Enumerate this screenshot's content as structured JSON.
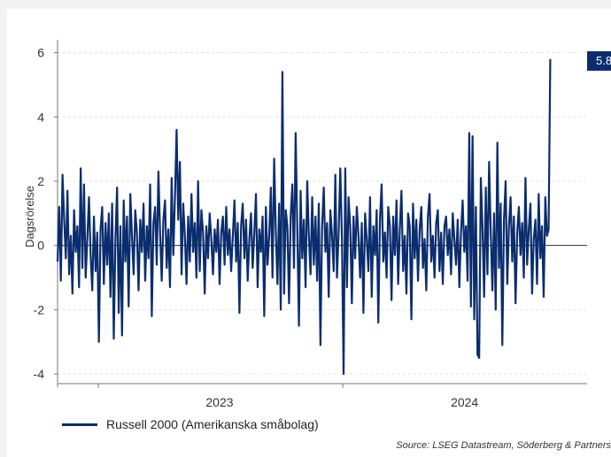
{
  "chart_data": {
    "type": "line",
    "ylabel": "Dagsrörelse",
    "ylim": [
      -4.3,
      6.4
    ],
    "yticks": [
      6,
      4,
      2,
      0,
      -2,
      -4
    ],
    "ytick_labels": [
      "6",
      "4",
      "2",
      "0",
      "-2",
      "-4"
    ],
    "xlim": [
      "2022-11-01",
      "2024-12-31"
    ],
    "xticks": [
      {
        "label": "2023",
        "date": "2023-07-01"
      },
      {
        "label": "2024",
        "date": "2024-07-01"
      }
    ],
    "x_separators": [
      "2023-01-01",
      "2024-01-01"
    ],
    "grid": "horizontal",
    "legend_position": "bottom-left",
    "series": [
      {
        "name": "Russell 2000 (Amerikanska småbolag)",
        "color": "#0b2d6e",
        "x_start": "2022-11-01",
        "x_end": "2024-11-06",
        "values": [
          -0.5,
          1.2,
          -1.1,
          2.2,
          0.8,
          -0.4,
          1.7,
          -0.9,
          0.3,
          -1.5,
          1.1,
          -0.2,
          0.6,
          -1.3,
          2.4,
          -0.7,
          1.9,
          -1.0,
          0.2,
          1.5,
          -0.3,
          -1.4,
          0.9,
          -0.8,
          0.4,
          -3.0,
          0.5,
          1.2,
          -1.2,
          0.7,
          -0.6,
          1.0,
          -1.6,
          1.3,
          -2.9,
          0.2,
          1.8,
          -2.1,
          0.6,
          -2.8,
          1.4,
          -0.5,
          0.9,
          -1.9,
          1.6,
          0.3,
          -0.9,
          1.1,
          0.4,
          -1.4,
          0.8,
          -0.2,
          1.3,
          -1.1,
          0.6,
          -0.4,
          1.9,
          -2.2,
          0.7,
          1.2,
          -0.6,
          2.3,
          0.4,
          -1.1,
          0.8,
          1.4,
          -0.7,
          0.5,
          -1.3,
          2.1,
          -0.3,
          1.5,
          3.6,
          0.8,
          2.6,
          -0.9,
          1.3,
          0.3,
          -1.2,
          0.9,
          -0.5,
          1.6,
          -0.2,
          0.7,
          -1.0,
          2.0,
          -0.8,
          1.1,
          0.4,
          -1.5,
          0.6,
          -0.4,
          1.0,
          0.2,
          -0.9,
          0.5,
          -0.2,
          0.8,
          -1.2,
          0.4,
          0.9,
          -0.6,
          1.2,
          -0.3,
          0.5,
          -0.8,
          0.3,
          1.4,
          -0.5,
          0.7,
          -2.1,
          0.6,
          1.3,
          -0.4,
          0.8,
          -1.1,
          0.2,
          1.0,
          -0.7,
          0.4,
          1.6,
          -1.3,
          0.5,
          -0.2,
          0.9,
          -2.2,
          1.2,
          -0.6,
          0.3,
          1.8,
          -1.0,
          2.7,
          0.4,
          -1.2,
          1.3,
          -2.0,
          5.4,
          -1.5,
          1.1,
          0.6,
          -1.8,
          0.9,
          1.9,
          -0.7,
          3.5,
          0.5,
          -2.5,
          1.7,
          -0.4,
          0.8,
          -1.3,
          2.0,
          0.3,
          -0.9,
          1.5,
          -0.6,
          0.9,
          -1.1,
          1.3,
          -3.1,
          0.6,
          1.8,
          -0.2,
          0.7,
          -1.6,
          1.1,
          0.3,
          -0.8,
          2.2,
          -1.0,
          0.4,
          2.4,
          0.2,
          -4.0,
          2.4,
          -1.3,
          1.5,
          0.6,
          -1.8,
          0.9,
          -0.4,
          1.2,
          0.3,
          -1.0,
          0.7,
          -2.1,
          1.0,
          0.2,
          -0.8,
          1.5,
          -1.6,
          0.6,
          -0.3,
          1.1,
          -2.4,
          0.8,
          1.9,
          -0.5,
          0.4,
          -1.0,
          1.2,
          0.6,
          -1.7,
          0.9,
          -0.3,
          1.4,
          -1.2,
          0.5,
          1.7,
          -0.8,
          0.3,
          -1.5,
          1.0,
          0.6,
          -2.3,
          1.3,
          -0.4,
          0.8,
          -1.1,
          0.5,
          1.2,
          -0.7,
          0.2,
          -1.4,
          0.9,
          1.6,
          -0.5,
          0.3,
          -1.0,
          0.7,
          1.1,
          -0.8,
          0.4,
          -1.2,
          0.6,
          0.9,
          -0.3,
          0.5,
          -0.9,
          1.0,
          0.2,
          -0.6,
          0.8,
          -1.3,
          0.4,
          1.4,
          -0.2,
          0.6,
          -1.1,
          3.5,
          -1.9,
          3.4,
          -2.3,
          1.2,
          -3.4,
          -3.5,
          2.1,
          0.6,
          -1.6,
          1.8,
          -0.9,
          2.6,
          0.4,
          -1.4,
          1.0,
          -2.0,
          3.2,
          -0.7,
          1.3,
          -3.1,
          0.8,
          2.0,
          -1.2,
          0.6,
          1.5,
          -0.5,
          0.9,
          -1.8,
          0.4,
          1.2,
          -0.3,
          0.7,
          -1.0,
          2.1,
          -0.6,
          0.5,
          1.3,
          -1.5,
          0.2,
          0.8,
          -1.2,
          1.6,
          -0.4,
          0.6,
          -1.6,
          1.5,
          0.3,
          0.5,
          5.8
        ]
      }
    ],
    "annotation_label": "5.8",
    "source": "Source: LSEG Datastream, Söderberg & Partners"
  }
}
